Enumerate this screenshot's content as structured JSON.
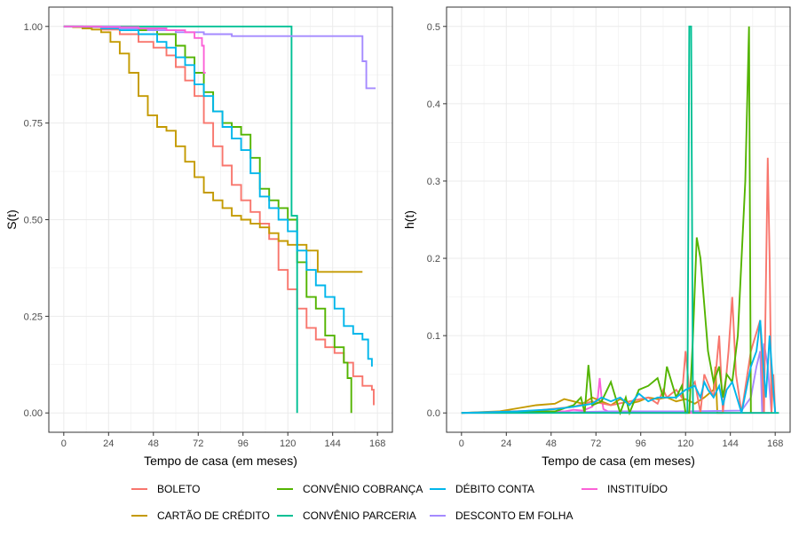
{
  "colors": {
    "BOLETO": "#F8766D",
    "CARTAO": "#C49A00",
    "COBRANCA": "#53B400",
    "PARCERIA": "#00C094",
    "DEBITO": "#00B6EB",
    "FOLHA": "#A58AFF",
    "INSTITUIDO": "#FB61D7"
  },
  "legend": {
    "items": [
      {
        "key": "BOLETO",
        "label": "BOLETO"
      },
      {
        "key": "CARTAO",
        "label": "CARTÃO DE CRÉDITO"
      },
      {
        "key": "COBRANCA",
        "label": "CONVÊNIO COBRANÇA"
      },
      {
        "key": "PARCERIA",
        "label": "CONVÊNIO PARCERIA"
      },
      {
        "key": "DEBITO",
        "label": "DÉBITO CONTA"
      },
      {
        "key": "FOLHA",
        "label": "DESCONTO EM FOLHA"
      },
      {
        "key": "INSTITUIDO",
        "label": "INSTITUÍDO"
      }
    ]
  },
  "chart_data": [
    {
      "type": "line",
      "step": true,
      "xlabel": "Tempo de casa (em meses)",
      "ylabel": "S(t)",
      "xlim": [
        -8,
        176
      ],
      "ylim": [
        -0.05,
        1.05
      ],
      "xticks": [
        0,
        24,
        48,
        72,
        96,
        120,
        144,
        168
      ],
      "yticks": [
        0.0,
        0.25,
        0.5,
        0.75,
        1.0
      ],
      "ytick_labels": [
        "0.00",
        "0.25",
        "0.50",
        "0.75",
        "1.00"
      ],
      "grid": true,
      "series": [
        {
          "key": "BOLETO",
          "x": [
            0,
            10,
            20,
            30,
            40,
            48,
            55,
            60,
            65,
            70,
            75,
            80,
            85,
            90,
            95,
            100,
            105,
            110,
            115,
            120,
            125,
            130,
            135,
            140,
            145,
            150,
            155,
            160,
            165,
            166
          ],
          "y": [
            1.0,
            0.998,
            0.992,
            0.98,
            0.96,
            0.945,
            0.925,
            0.895,
            0.86,
            0.82,
            0.75,
            0.69,
            0.64,
            0.59,
            0.55,
            0.52,
            0.49,
            0.45,
            0.37,
            0.32,
            0.27,
            0.22,
            0.19,
            0.17,
            0.155,
            0.13,
            0.095,
            0.07,
            0.06,
            0.02
          ]
        },
        {
          "key": "CARTAO",
          "x": [
            0,
            5,
            10,
            15,
            20,
            25,
            30,
            35,
            40,
            45,
            50,
            55,
            60,
            65,
            70,
            75,
            80,
            85,
            90,
            95,
            100,
            105,
            110,
            115,
            120,
            130,
            136,
            145,
            160
          ],
          "y": [
            1.0,
            0.998,
            0.995,
            0.992,
            0.985,
            0.96,
            0.93,
            0.88,
            0.82,
            0.77,
            0.74,
            0.73,
            0.69,
            0.65,
            0.61,
            0.57,
            0.55,
            0.53,
            0.51,
            0.5,
            0.49,
            0.48,
            0.465,
            0.445,
            0.435,
            0.42,
            0.365,
            0.365,
            0.365
          ]
        },
        {
          "key": "COBRANCA",
          "x": [
            0,
            20,
            40,
            50,
            60,
            65,
            70,
            75,
            80,
            85,
            90,
            95,
            100,
            105,
            110,
            115,
            120,
            125,
            130,
            135,
            140,
            145,
            150,
            152,
            154
          ],
          "y": [
            1.0,
            1.0,
            0.99,
            0.98,
            0.95,
            0.92,
            0.88,
            0.83,
            0.78,
            0.75,
            0.74,
            0.72,
            0.66,
            0.58,
            0.55,
            0.53,
            0.5,
            0.39,
            0.3,
            0.27,
            0.2,
            0.17,
            0.13,
            0.09,
            0.0
          ]
        },
        {
          "key": "PARCERIA",
          "x": [
            0,
            110,
            121,
            122,
            124,
            125
          ],
          "y": [
            1.0,
            1.0,
            1.0,
            0.51,
            0.51,
            0.0
          ]
        },
        {
          "key": "DEBITO",
          "x": [
            0,
            10,
            20,
            30,
            40,
            50,
            55,
            60,
            65,
            70,
            75,
            80,
            85,
            90,
            95,
            100,
            105,
            110,
            115,
            120,
            125,
            130,
            135,
            140,
            145,
            150,
            155,
            160,
            163,
            165
          ],
          "y": [
            1.0,
            0.999,
            0.995,
            0.99,
            0.98,
            0.96,
            0.945,
            0.92,
            0.9,
            0.85,
            0.82,
            0.78,
            0.74,
            0.71,
            0.68,
            0.62,
            0.56,
            0.53,
            0.5,
            0.47,
            0.42,
            0.37,
            0.33,
            0.3,
            0.27,
            0.225,
            0.205,
            0.19,
            0.14,
            0.12
          ]
        },
        {
          "key": "FOLHA",
          "x": [
            0,
            30,
            45,
            60,
            75,
            90,
            110,
            125,
            140,
            150,
            155,
            160,
            162,
            164,
            167
          ],
          "y": [
            1.0,
            0.995,
            0.99,
            0.985,
            0.98,
            0.975,
            0.975,
            0.975,
            0.975,
            0.975,
            0.975,
            0.91,
            0.84,
            0.84,
            0.84
          ]
        },
        {
          "key": "INSTITUIDO",
          "x": [
            0,
            20,
            40,
            55,
            65,
            70,
            74,
            75,
            76
          ],
          "y": [
            1.0,
            0.998,
            0.995,
            0.99,
            0.985,
            0.97,
            0.95,
            0.88,
            0.88
          ]
        }
      ]
    },
    {
      "type": "line",
      "xlabel": "Tempo de casa (em meses)",
      "ylabel": "h(t)",
      "xlim": [
        -8,
        176
      ],
      "ylim": [
        -0.025,
        0.525
      ],
      "xticks": [
        0,
        24,
        48,
        72,
        96,
        120,
        144,
        168
      ],
      "yticks": [
        0.0,
        0.1,
        0.2,
        0.3,
        0.4,
        0.5
      ],
      "ytick_labels": [
        "0.0",
        "0.1",
        "0.2",
        "0.3",
        "0.4",
        "0.5"
      ],
      "grid": true,
      "series": [
        {
          "key": "INSTITUIDO",
          "x": [
            0,
            20,
            40,
            55,
            60,
            65,
            70,
            73,
            74,
            75,
            76,
            80,
            100,
            130,
            165
          ],
          "y": [
            0,
            0.001,
            0.002,
            0.002,
            0.004,
            0.003,
            0.008,
            0.02,
            0.045,
            0.02,
            0.005,
            0.0,
            0.0,
            0.0,
            0.0
          ]
        },
        {
          "key": "CARTAO",
          "x": [
            0,
            20,
            30,
            40,
            50,
            55,
            60,
            65,
            70,
            75,
            80,
            85,
            90,
            95,
            100,
            105,
            110,
            115,
            120,
            125,
            130,
            135,
            136,
            137,
            140
          ],
          "y": [
            0,
            0.002,
            0.006,
            0.01,
            0.012,
            0.018,
            0.015,
            0.012,
            0.02,
            0.015,
            0.01,
            0.018,
            0.012,
            0.015,
            0.02,
            0.018,
            0.02,
            0.015,
            0.018,
            0.012,
            0.02,
            0.03,
            0.06,
            0.0,
            0.0
          ]
        },
        {
          "key": "FOLHA",
          "x": [
            0,
            40,
            80,
            120,
            150,
            155,
            158,
            160,
            161,
            162,
            164,
            166
          ],
          "y": [
            0,
            0,
            0.002,
            0.002,
            0.003,
            0.02,
            0.06,
            0.08,
            0.0,
            0.09,
            0.06,
            0.0
          ]
        },
        {
          "key": "BOLETO",
          "x": [
            0,
            40,
            60,
            70,
            80,
            90,
            100,
            105,
            108,
            110,
            115,
            118,
            120,
            122,
            125,
            128,
            130,
            135,
            138,
            140,
            143,
            145,
            147,
            150,
            155,
            160,
            162,
            164,
            165,
            166,
            167,
            168
          ],
          "y": [
            0,
            0.003,
            0.008,
            0.015,
            0.01,
            0.015,
            0.02,
            0.012,
            0.03,
            0.02,
            0.03,
            0.02,
            0.08,
            0.03,
            0.04,
            0.0,
            0.05,
            0.02,
            0.1,
            0.0,
            0.08,
            0.15,
            0.05,
            0.0,
            0.08,
            0.12,
            0.0,
            0.33,
            0.2,
            0.0,
            0.05,
            0.0
          ]
        },
        {
          "key": "COBRANCA",
          "x": [
            0,
            50,
            60,
            64,
            66,
            68,
            70,
            75,
            80,
            85,
            88,
            90,
            95,
            100,
            105,
            108,
            110,
            115,
            118,
            120,
            122,
            124,
            126,
            128,
            130,
            132,
            135,
            138,
            140,
            142,
            145,
            148,
            150,
            152,
            154,
            155
          ],
          "y": [
            0,
            0.002,
            0.01,
            0.02,
            0.0,
            0.062,
            0.01,
            0.015,
            0.04,
            0.0,
            0.02,
            0.0,
            0.03,
            0.035,
            0.045,
            0.02,
            0.06,
            0.02,
            0.035,
            0.0,
            0.0,
            0.1,
            0.227,
            0.2,
            0.14,
            0.08,
            0.04,
            0.06,
            0.02,
            0.05,
            0.04,
            0.1,
            0.2,
            0.3,
            0.5,
            0.0
          ]
        },
        {
          "key": "PARCERIA",
          "x": [
            0,
            115,
            120,
            121,
            122,
            123,
            124,
            125,
            170
          ],
          "y": [
            0,
            0,
            0,
            0,
            0.5,
            0.5,
            0,
            0,
            0
          ]
        },
        {
          "key": "DEBITO",
          "x": [
            0,
            30,
            50,
            60,
            70,
            75,
            80,
            85,
            90,
            95,
            100,
            105,
            110,
            115,
            120,
            125,
            128,
            130,
            132,
            135,
            138,
            140,
            142,
            145,
            150,
            155,
            158,
            160,
            162,
            163,
            165,
            167,
            168
          ],
          "y": [
            0,
            0.002,
            0.005,
            0.008,
            0.012,
            0.02,
            0.015,
            0.02,
            0.01,
            0.025,
            0.015,
            0.02,
            0.02,
            0.02,
            0.03,
            0.035,
            0.02,
            0.04,
            0.03,
            0.02,
            0.035,
            0.01,
            0.03,
            0.04,
            0.0,
            0.06,
            0.08,
            0.12,
            0.05,
            0.02,
            0.1,
            0.03,
            0.0
          ]
        }
      ]
    }
  ]
}
